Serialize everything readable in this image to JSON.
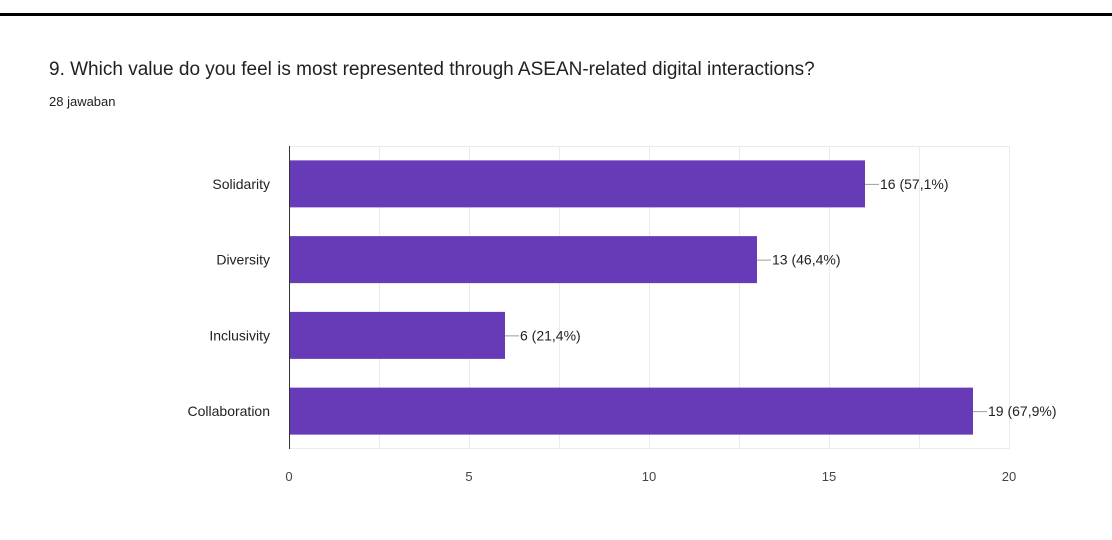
{
  "question": {
    "title": "9. Which value do you feel is most represented through ASEAN-related digital interactions?",
    "response_count": "28 jawaban"
  },
  "chart_data": {
    "type": "bar",
    "orientation": "horizontal",
    "categories": [
      "Solidarity",
      "Diversity",
      "Inclusivity",
      "Collaboration"
    ],
    "values": [
      16,
      13,
      6,
      19
    ],
    "data_labels": [
      "16 (57,1%)",
      "13 (46,4%)",
      "6 (21,4%)",
      "19 (67,9%)"
    ],
    "xlim": [
      0,
      20
    ],
    "x_ticks": [
      0,
      5,
      10,
      15,
      20
    ],
    "grid": true,
    "legend": "none",
    "bar_color": "#673ab7",
    "title": "",
    "xlabel": "",
    "ylabel": ""
  }
}
